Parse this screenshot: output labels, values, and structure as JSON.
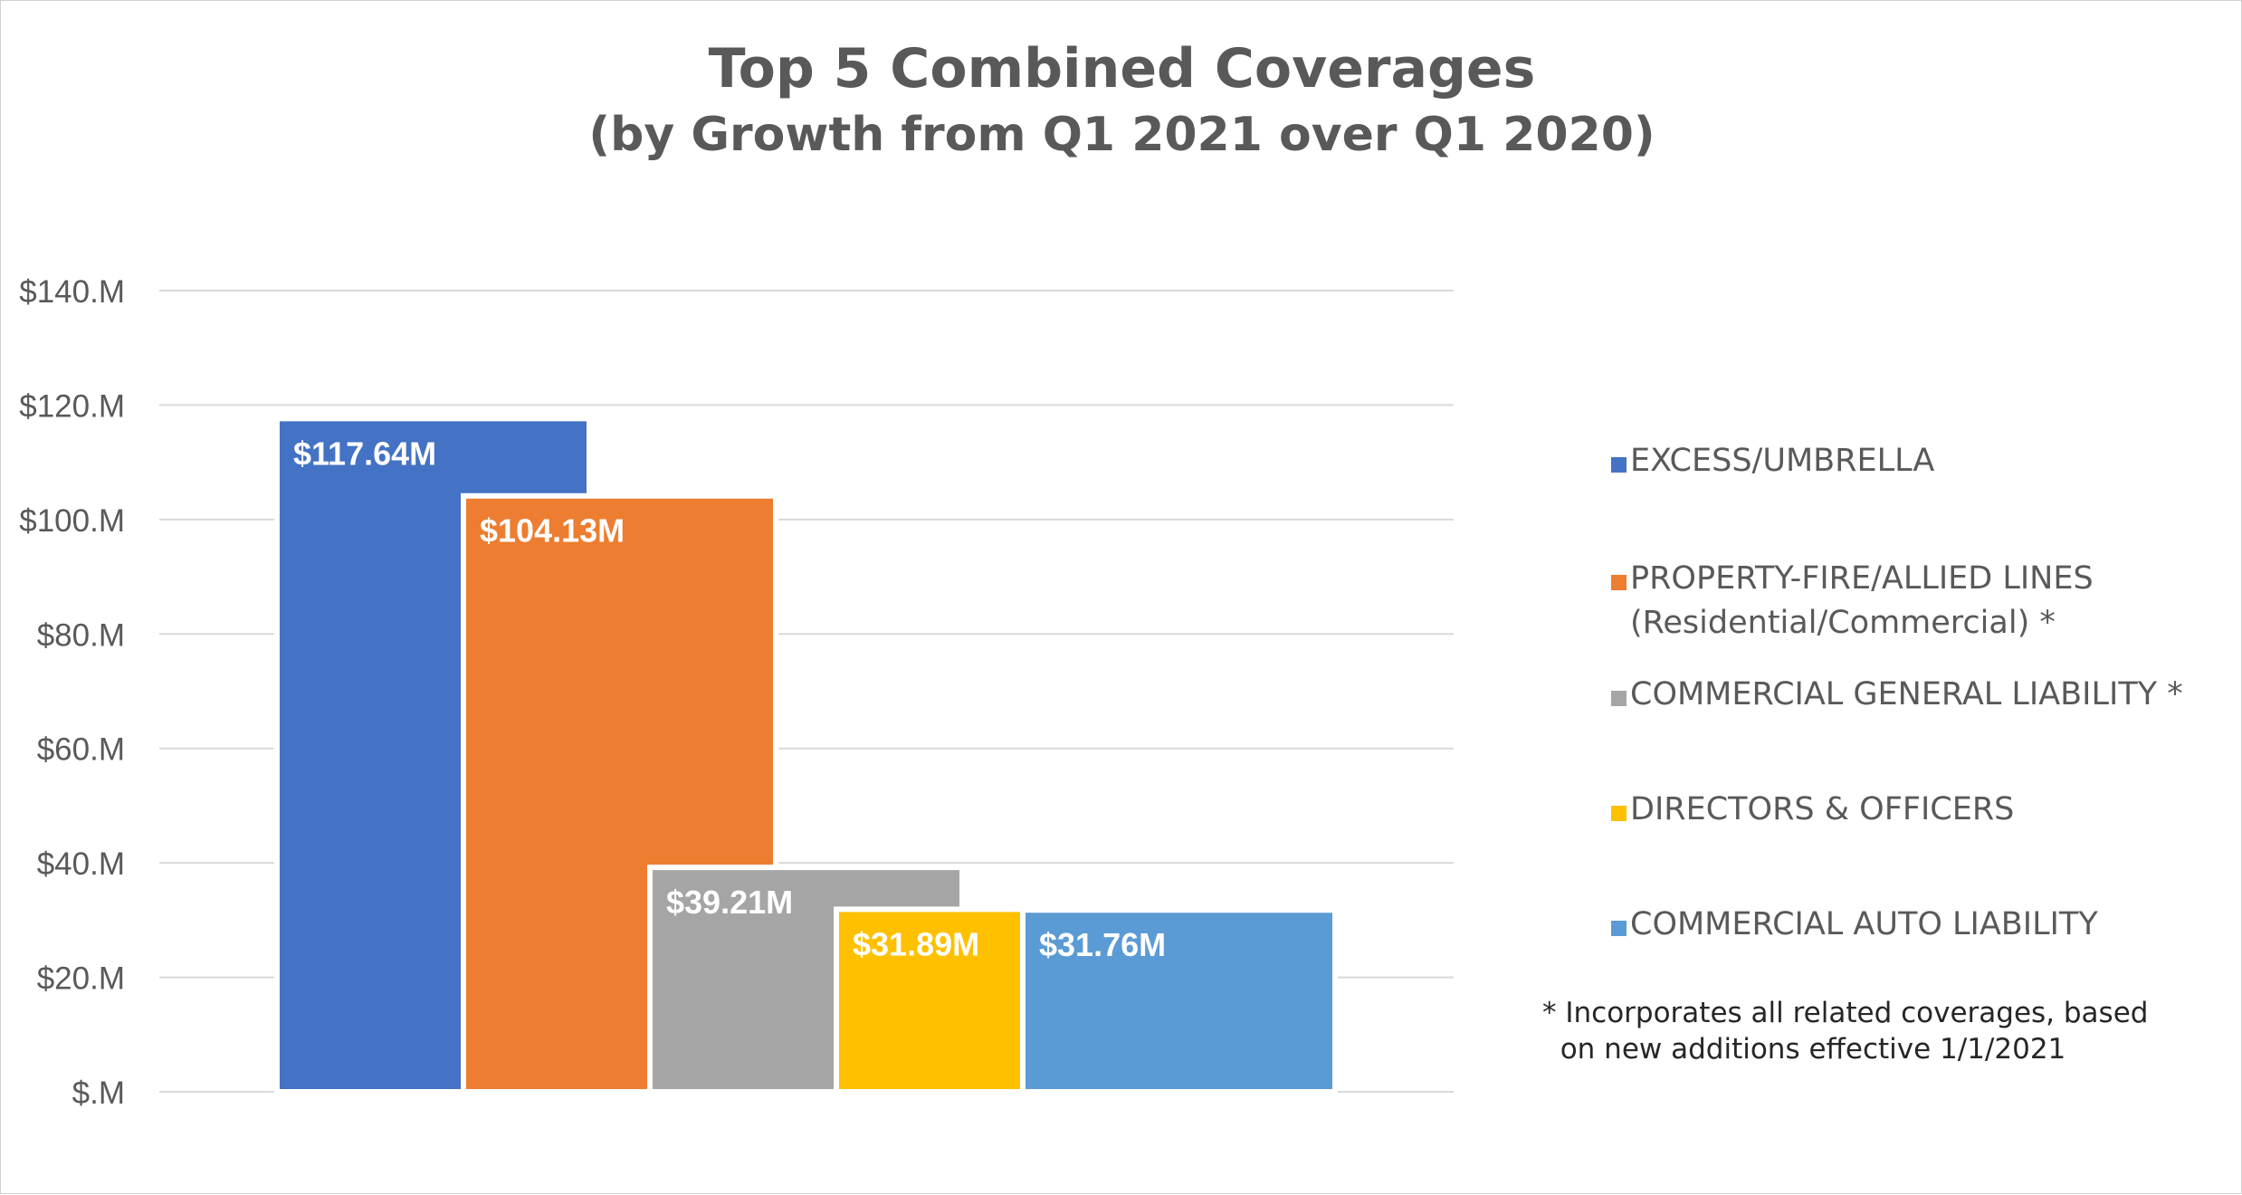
{
  "chart_data": {
    "type": "bar",
    "title": "Top 5 Combined Coverages",
    "subtitle": "(by Growth from Q1 2021 over Q1 2020)",
    "categories": [
      "EXCESS/UMBRELLA",
      "PROPERTY-FIRE/ALLIED LINES (Residential/Commercial) *",
      "COMMERCIAL GENERAL LIABILITY *",
      "DIRECTORS & OFFICERS",
      "COMMERCIAL AUTO LIABILITY"
    ],
    "values": [
      117.64,
      104.13,
      39.21,
      31.89,
      31.76
    ],
    "data_labels": [
      "$117.64M",
      "$104.13M",
      "$39.21M",
      "$31.89M",
      "$31.76M"
    ],
    "colors": [
      "#4472C4",
      "#ED7D31",
      "#A5A5A5",
      "#FFC000",
      "#5B9BD5"
    ],
    "ylim": [
      0,
      140
    ],
    "y_ticks": [
      0,
      20,
      40,
      60,
      80,
      100,
      120,
      140
    ],
    "y_tick_labels": [
      "$.M",
      "$20.M",
      "$40.M",
      "$60.M",
      "$80.M",
      "$100.M",
      "$120.M",
      "$140.M"
    ],
    "grid": true,
    "legend_position": "right",
    "legend": [
      {
        "line1": "EXCESS/UMBRELLA",
        "line2": ""
      },
      {
        "line1": "PROPERTY-FIRE/ALLIED LINES",
        "line2": "(Residential/Commercial) *"
      },
      {
        "line1": "COMMERCIAL GENERAL LIABILITY *",
        "line2": ""
      },
      {
        "line1": "DIRECTORS & OFFICERS",
        "line2": ""
      },
      {
        "line1": "COMMERCIAL AUTO LIABILITY",
        "line2": ""
      }
    ],
    "footnote": "* Incorporates all related coverages, based\n  on new additions effective 1/1/2021"
  }
}
